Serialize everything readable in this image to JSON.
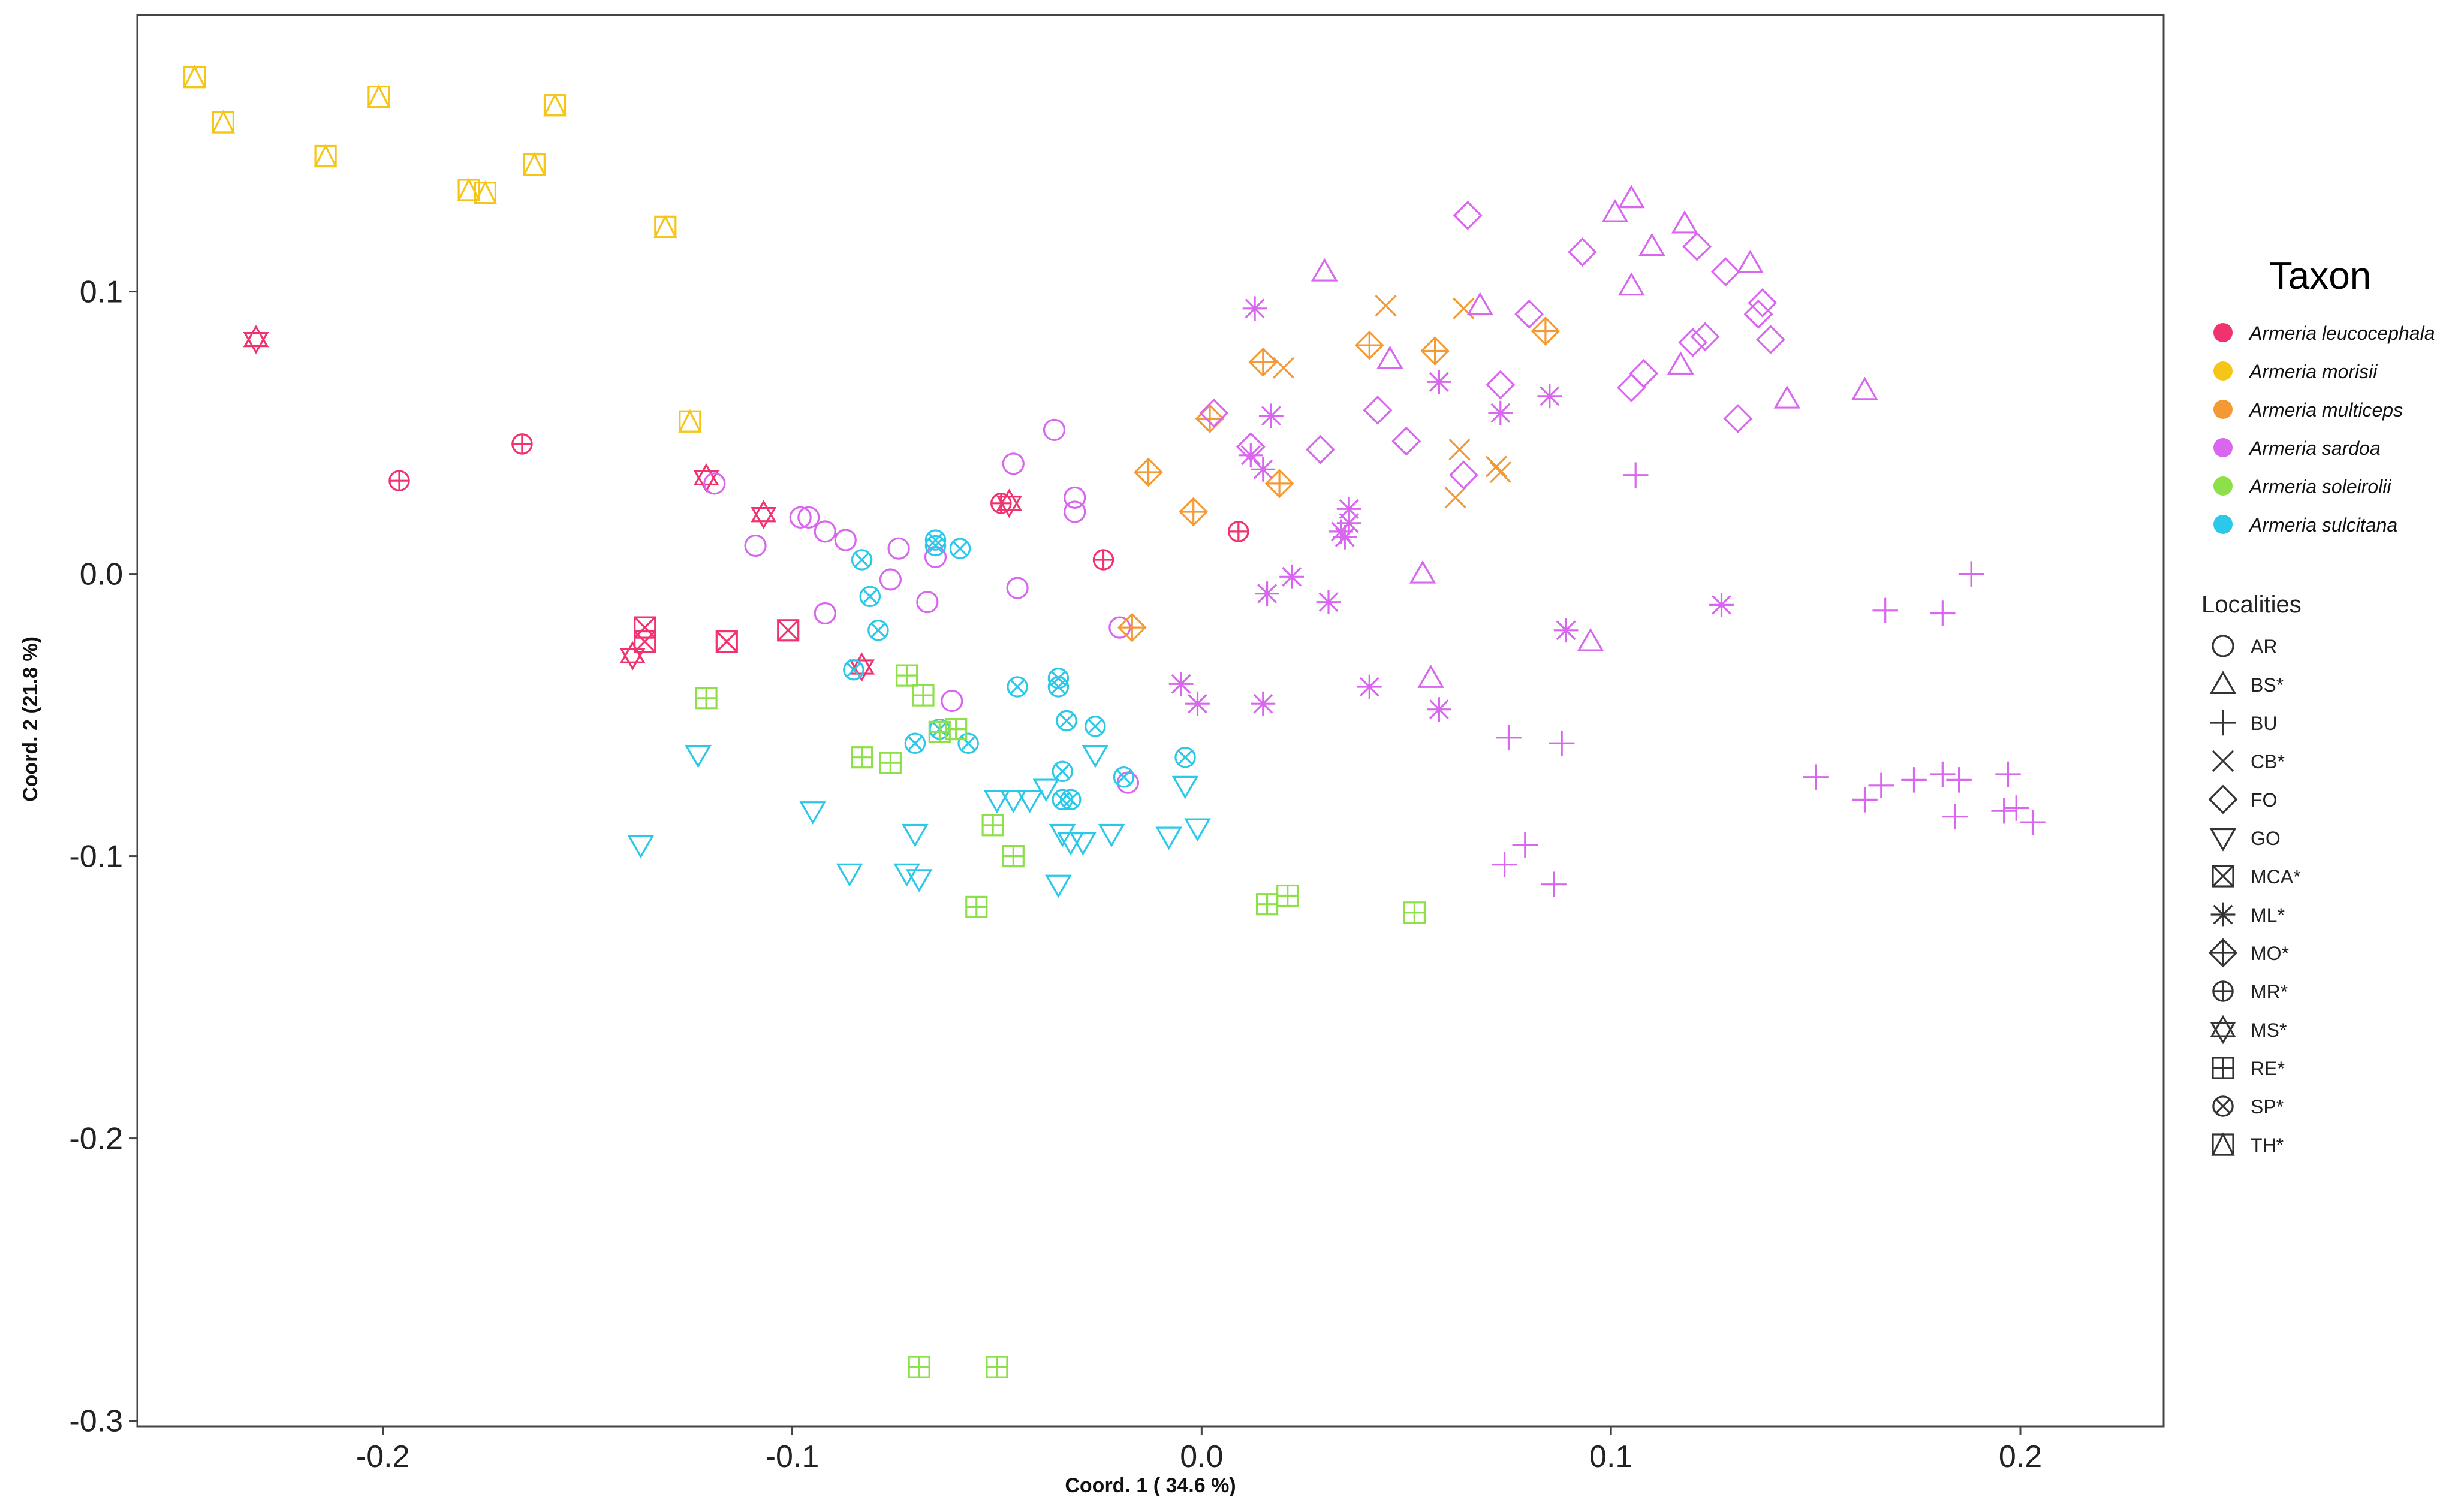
{
  "chart_data": {
    "type": "scatter",
    "title": "",
    "xlabel": "Coord. 1 ( 34.6 %)",
    "ylabel": "Coord. 2 (21.8 %)",
    "xlim": [
      -0.26,
      0.235
    ],
    "ylim": [
      -0.302,
      0.198
    ],
    "x_ticks": [
      -0.2,
      -0.1,
      0.0,
      0.1,
      0.2
    ],
    "x_tick_labels": [
      "-0.2",
      "-0.1",
      "0.0",
      "0.1",
      "0.2"
    ],
    "y_ticks": [
      -0.3,
      -0.2,
      -0.1,
      0.0,
      0.1
    ],
    "y_tick_labels": [
      "-0.3",
      "-0.2",
      "-0.1",
      "0.0",
      "0.1"
    ],
    "grid": false,
    "legend_position": "right",
    "taxon_legend": {
      "title": "Taxon",
      "items": [
        {
          "name": "Armeria leucocephala",
          "color": "#F0336E"
        },
        {
          "name": "Armeria morisii",
          "color": "#F5C518"
        },
        {
          "name": "Armeria multiceps",
          "color": "#F49A34"
        },
        {
          "name": "Armeria sardoa",
          "color": "#D966EE"
        },
        {
          "name": "Armeria soleirolii",
          "color": "#8EE04A"
        },
        {
          "name": "Armeria sulcitana",
          "color": "#2BC8EA"
        }
      ]
    },
    "locality_legend": {
      "title": "Localities",
      "items": [
        {
          "code": "AR",
          "symbol": "circle"
        },
        {
          "code": "BS*",
          "symbol": "triangle"
        },
        {
          "code": "BU",
          "symbol": "plus"
        },
        {
          "code": "CB*",
          "symbol": "cross"
        },
        {
          "code": "FO",
          "symbol": "diamond"
        },
        {
          "code": "GO",
          "symbol": "triangle-down"
        },
        {
          "code": "MCA*",
          "symbol": "square-x"
        },
        {
          "code": "ML*",
          "symbol": "asterisk"
        },
        {
          "code": "MO*",
          "symbol": "diamond-plus"
        },
        {
          "code": "MR*",
          "symbol": "circle-plus"
        },
        {
          "code": "MS*",
          "symbol": "star-david"
        },
        {
          "code": "RE*",
          "symbol": "square-plus"
        },
        {
          "code": "SP*",
          "symbol": "circle-x"
        },
        {
          "code": "TH*",
          "symbol": "square-triangle"
        }
      ]
    },
    "series": [
      {
        "taxon": "Armeria morisii",
        "locality": "TH*",
        "points": [
          [
            -0.246,
            0.176
          ],
          [
            -0.239,
            0.16
          ],
          [
            -0.214,
            0.148
          ],
          [
            -0.201,
            0.169
          ],
          [
            -0.179,
            0.136
          ],
          [
            -0.175,
            0.135
          ],
          [
            -0.163,
            0.145
          ],
          [
            -0.158,
            0.166
          ],
          [
            -0.131,
            0.123
          ],
          [
            -0.125,
            0.054
          ]
        ]
      },
      {
        "taxon": "Armeria leucocephala",
        "locality": "MS*",
        "points": [
          [
            -0.231,
            0.083
          ],
          [
            -0.121,
            0.034
          ],
          [
            -0.107,
            0.021
          ],
          [
            -0.047,
            0.025
          ],
          [
            -0.083,
            -0.033
          ],
          [
            -0.139,
            -0.029
          ]
        ]
      },
      {
        "taxon": "Armeria leucocephala",
        "locality": "MR*",
        "points": [
          [
            -0.196,
            0.033
          ],
          [
            -0.166,
            0.046
          ],
          [
            -0.049,
            0.025
          ],
          [
            -0.024,
            0.005
          ],
          [
            0.009,
            0.015
          ]
        ]
      },
      {
        "taxon": "Armeria leucocephala",
        "locality": "MCA*",
        "points": [
          [
            -0.136,
            -0.019
          ],
          [
            -0.136,
            -0.024
          ],
          [
            -0.116,
            -0.024
          ],
          [
            -0.101,
            -0.02
          ]
        ]
      },
      {
        "taxon": "Armeria sardoa",
        "locality": "AR",
        "points": [
          [
            -0.119,
            0.032
          ],
          [
            -0.109,
            0.01
          ],
          [
            -0.098,
            0.02
          ],
          [
            -0.096,
            0.02
          ],
          [
            -0.092,
            0.015
          ],
          [
            -0.087,
            0.012
          ],
          [
            -0.092,
            -0.014
          ],
          [
            -0.076,
            -0.002
          ],
          [
            -0.074,
            0.009
          ],
          [
            -0.067,
            -0.01
          ],
          [
            -0.061,
            -0.045
          ],
          [
            -0.065,
            0.006
          ],
          [
            -0.046,
            0.039
          ],
          [
            -0.045,
            -0.005
          ],
          [
            -0.036,
            0.051
          ],
          [
            -0.031,
            0.027
          ],
          [
            -0.031,
            0.022
          ],
          [
            -0.02,
            -0.019
          ],
          [
            -0.018,
            -0.074
          ]
        ]
      },
      {
        "taxon": "Armeria sulcitana",
        "locality": "SP*",
        "points": [
          [
            -0.083,
            0.005
          ],
          [
            -0.081,
            -0.008
          ],
          [
            -0.079,
            -0.02
          ],
          [
            -0.065,
            0.012
          ],
          [
            -0.065,
            0.01
          ],
          [
            -0.059,
            0.009
          ],
          [
            -0.057,
            -0.06
          ],
          [
            -0.07,
            -0.06
          ],
          [
            -0.064,
            -0.055
          ],
          [
            -0.045,
            -0.04
          ],
          [
            -0.035,
            -0.04
          ],
          [
            -0.035,
            -0.037
          ],
          [
            -0.033,
            -0.052
          ],
          [
            -0.034,
            -0.07
          ],
          [
            -0.034,
            -0.08
          ],
          [
            -0.032,
            -0.08
          ],
          [
            -0.026,
            -0.054
          ],
          [
            -0.019,
            -0.072
          ],
          [
            -0.004,
            -0.065
          ],
          [
            -0.085,
            -0.034
          ]
        ]
      },
      {
        "taxon": "Armeria sulcitana",
        "locality": "GO",
        "points": [
          [
            -0.137,
            -0.096
          ],
          [
            -0.123,
            -0.064
          ],
          [
            -0.095,
            -0.084
          ],
          [
            -0.086,
            -0.106
          ],
          [
            -0.072,
            -0.106
          ],
          [
            -0.07,
            -0.092
          ],
          [
            -0.069,
            -0.108
          ],
          [
            -0.05,
            -0.08
          ],
          [
            -0.046,
            -0.08
          ],
          [
            -0.042,
            -0.08
          ],
          [
            -0.038,
            -0.076
          ],
          [
            -0.035,
            -0.11
          ],
          [
            -0.034,
            -0.092
          ],
          [
            -0.032,
            -0.095
          ],
          [
            -0.029,
            -0.095
          ],
          [
            -0.026,
            -0.064
          ],
          [
            -0.022,
            -0.092
          ],
          [
            -0.008,
            -0.093
          ],
          [
            -0.004,
            -0.075
          ],
          [
            -0.001,
            -0.09
          ]
        ]
      },
      {
        "taxon": "Armeria soleirolii",
        "locality": "RE*",
        "points": [
          [
            -0.121,
            -0.044
          ],
          [
            -0.083,
            -0.065
          ],
          [
            -0.076,
            -0.067
          ],
          [
            -0.072,
            -0.036
          ],
          [
            -0.068,
            -0.043
          ],
          [
            -0.064,
            -0.056
          ],
          [
            -0.06,
            -0.055
          ],
          [
            -0.055,
            -0.118
          ],
          [
            -0.051,
            -0.089
          ],
          [
            -0.046,
            -0.1
          ],
          [
            -0.069,
            -0.281
          ],
          [
            -0.05,
            -0.281
          ],
          [
            0.016,
            -0.117
          ],
          [
            0.021,
            -0.114
          ],
          [
            0.052,
            -0.12
          ]
        ]
      },
      {
        "taxon": "Armeria multiceps",
        "locality": "MO*",
        "points": [
          [
            -0.017,
            -0.019
          ],
          [
            -0.013,
            0.036
          ],
          [
            -0.002,
            0.022
          ],
          [
            0.002,
            0.055
          ],
          [
            0.015,
            0.075
          ],
          [
            0.019,
            0.032
          ],
          [
            0.041,
            0.081
          ],
          [
            0.057,
            0.079
          ],
          [
            0.084,
            0.086
          ]
        ]
      },
      {
        "taxon": "Armeria multiceps",
        "locality": "CB*",
        "points": [
          [
            0.02,
            0.073
          ],
          [
            0.045,
            0.095
          ],
          [
            0.062,
            0.027
          ],
          [
            0.063,
            0.044
          ],
          [
            0.064,
            0.094
          ],
          [
            0.072,
            0.038
          ],
          [
            0.073,
            0.036
          ]
        ]
      },
      {
        "taxon": "Armeria sardoa",
        "locality": "ML*",
        "points": [
          [
            -0.005,
            -0.039
          ],
          [
            -0.001,
            -0.046
          ],
          [
            0.012,
            0.042
          ],
          [
            0.013,
            0.094
          ],
          [
            0.015,
            0.037
          ],
          [
            0.016,
            -0.007
          ],
          [
            0.017,
            0.056
          ],
          [
            0.015,
            -0.046
          ],
          [
            0.022,
            -0.001
          ],
          [
            0.031,
            -0.01
          ],
          [
            0.034,
            0.015
          ],
          [
            0.035,
            0.013
          ],
          [
            0.036,
            0.018
          ],
          [
            0.036,
            0.023
          ],
          [
            0.041,
            -0.04
          ],
          [
            0.058,
            -0.048
          ],
          [
            0.058,
            0.068
          ],
          [
            0.073,
            0.057
          ],
          [
            0.085,
            0.063
          ],
          [
            0.089,
            -0.02
          ],
          [
            0.127,
            -0.011
          ]
        ]
      },
      {
        "taxon": "Armeria sardoa",
        "locality": "FO",
        "points": [
          [
            0.003,
            0.057
          ],
          [
            0.012,
            0.045
          ],
          [
            0.029,
            0.044
          ],
          [
            0.043,
            0.058
          ],
          [
            0.05,
            0.047
          ],
          [
            0.064,
            0.035
          ],
          [
            0.065,
            0.127
          ],
          [
            0.073,
            0.067
          ],
          [
            0.08,
            0.092
          ],
          [
            0.093,
            0.114
          ],
          [
            0.105,
            0.066
          ],
          [
            0.108,
            0.071
          ],
          [
            0.12,
            0.082
          ],
          [
            0.121,
            0.116
          ],
          [
            0.123,
            0.084
          ],
          [
            0.128,
            0.107
          ],
          [
            0.131,
            0.055
          ],
          [
            0.136,
            0.092
          ],
          [
            0.137,
            0.096
          ],
          [
            0.139,
            0.083
          ]
        ]
      },
      {
        "taxon": "Armeria sardoa",
        "locality": "BS*",
        "points": [
          [
            0.03,
            0.107
          ],
          [
            0.046,
            0.076
          ],
          [
            0.054,
            0.0
          ],
          [
            0.056,
            -0.037
          ],
          [
            0.068,
            0.095
          ],
          [
            0.095,
            -0.024
          ],
          [
            0.101,
            0.128
          ],
          [
            0.105,
            0.133
          ],
          [
            0.105,
            0.102
          ],
          [
            0.11,
            0.116
          ],
          [
            0.117,
            0.074
          ],
          [
            0.118,
            0.124
          ],
          [
            0.134,
            0.11
          ],
          [
            0.143,
            0.062
          ],
          [
            0.162,
            0.065
          ]
        ]
      },
      {
        "taxon": "Armeria sardoa",
        "locality": "BU",
        "points": [
          [
            0.075,
            -0.058
          ],
          [
            0.074,
            -0.103
          ],
          [
            0.079,
            -0.096
          ],
          [
            0.086,
            -0.11
          ],
          [
            0.088,
            -0.06
          ],
          [
            0.106,
            0.035
          ],
          [
            0.15,
            -0.072
          ],
          [
            0.162,
            -0.08
          ],
          [
            0.166,
            -0.075
          ],
          [
            0.167,
            -0.013
          ],
          [
            0.174,
            -0.073
          ],
          [
            0.181,
            -0.071
          ],
          [
            0.181,
            -0.014
          ],
          [
            0.184,
            -0.086
          ],
          [
            0.185,
            -0.073
          ],
          [
            0.188,
            0.0
          ],
          [
            0.196,
            -0.084
          ],
          [
            0.197,
            -0.071
          ],
          [
            0.199,
            -0.083
          ],
          [
            0.203,
            -0.088
          ]
        ]
      }
    ]
  }
}
